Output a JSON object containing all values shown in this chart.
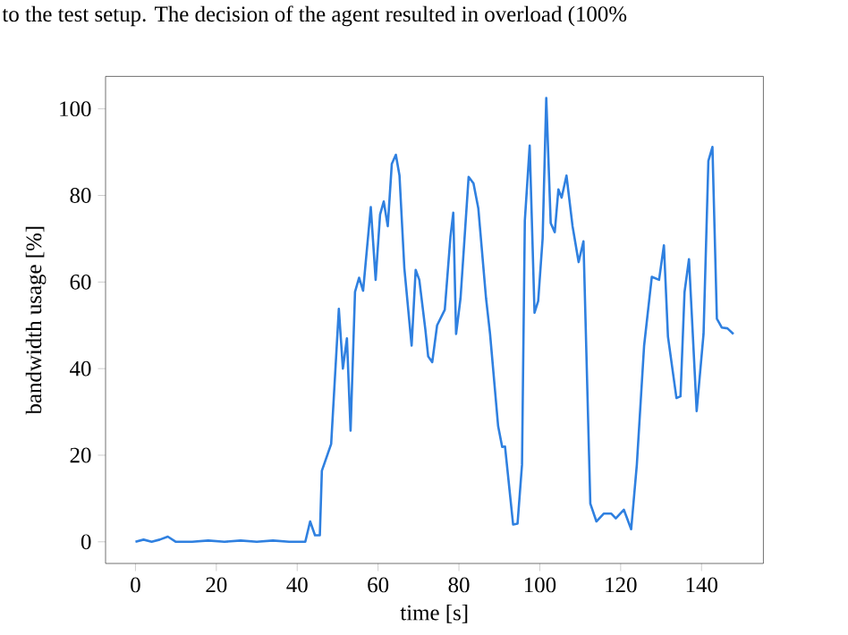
{
  "chart_data": {
    "type": "line",
    "xlabel": "time [s]",
    "ylabel": "bandwidth usage [%]",
    "annotations": [
      "to the test setup. The decision of the agent resulted in overload (100%"
    ],
    "x": [
      0,
      2,
      4,
      6,
      8,
      10,
      14,
      18,
      22,
      26,
      30,
      34,
      38,
      42,
      43.2,
      44.4,
      45.6,
      46.1,
      48.4,
      50.3,
      51.3,
      52.3,
      53.2,
      54.3,
      55.3,
      56.3,
      58.2,
      59.4,
      60.5,
      61.4,
      62.4,
      63.4,
      64.4,
      65.3,
      66.5,
      68.3,
      69.3,
      70.2,
      71.7,
      72.4,
      73.4,
      74.6,
      76.5,
      77.9,
      78.6,
      79.3,
      80.4,
      82.4,
      83.6,
      84.8,
      86.7,
      87.7,
      89.7,
      90.7,
      91.4,
      93.4,
      94.5,
      95.6,
      96.3,
      97.5,
      98.7,
      99.6,
      100.7,
      101.6,
      102.7,
      103.7,
      104.6,
      105.4,
      106.6,
      108.1,
      109.6,
      110.8,
      112.5,
      114,
      115.8,
      117.7,
      118.8,
      120.8,
      122.6,
      124,
      125.8,
      127.7,
      129.5,
      130.7,
      131.7,
      133.8,
      134.8,
      135.8,
      136.9,
      138.8,
      140.5,
      141.7,
      142.7,
      143.8,
      145,
      146.4,
      147.9
    ],
    "values": [
      0,
      0.5,
      0,
      0.5,
      1.2,
      0,
      0,
      0.3,
      0,
      0.3,
      0,
      0.3,
      0,
      0,
      4.7,
      1.5,
      1.5,
      16.4,
      22.6,
      53.8,
      40,
      47,
      25.7,
      57.7,
      61,
      58,
      77.3,
      60.5,
      75.6,
      78.6,
      72.9,
      87.3,
      89.4,
      84.6,
      63.2,
      45.3,
      62.8,
      60.5,
      49,
      42.8,
      41.5,
      50,
      53.6,
      70.4,
      76,
      48,
      56.3,
      84.3,
      82.8,
      77,
      56.3,
      48,
      26.7,
      21.9,
      22,
      4,
      4.2,
      17.8,
      74.2,
      91.5,
      52.9,
      55.6,
      70,
      102.5,
      73.6,
      71.5,
      81.4,
      79.5,
      84.6,
      72.9,
      64.6,
      69.4,
      8.8,
      4.7,
      6.5,
      6.5,
      5.4,
      7.4,
      2.9,
      17.8,
      45.3,
      61.2,
      60.5,
      68.5,
      47.4,
      33.2,
      33.6,
      57.7,
      65.3,
      30.2,
      48,
      88,
      91.2,
      51.5,
      49.5,
      49.3,
      48
    ],
    "color": "#2f80e0",
    "xlim": [
      -7.4,
      155.3
    ],
    "ylim": [
      -5,
      107.5
    ],
    "xticks": [
      0,
      20,
      40,
      60,
      80,
      100,
      120,
      140
    ],
    "yticks": [
      0,
      20,
      40,
      60,
      80,
      100
    ]
  }
}
